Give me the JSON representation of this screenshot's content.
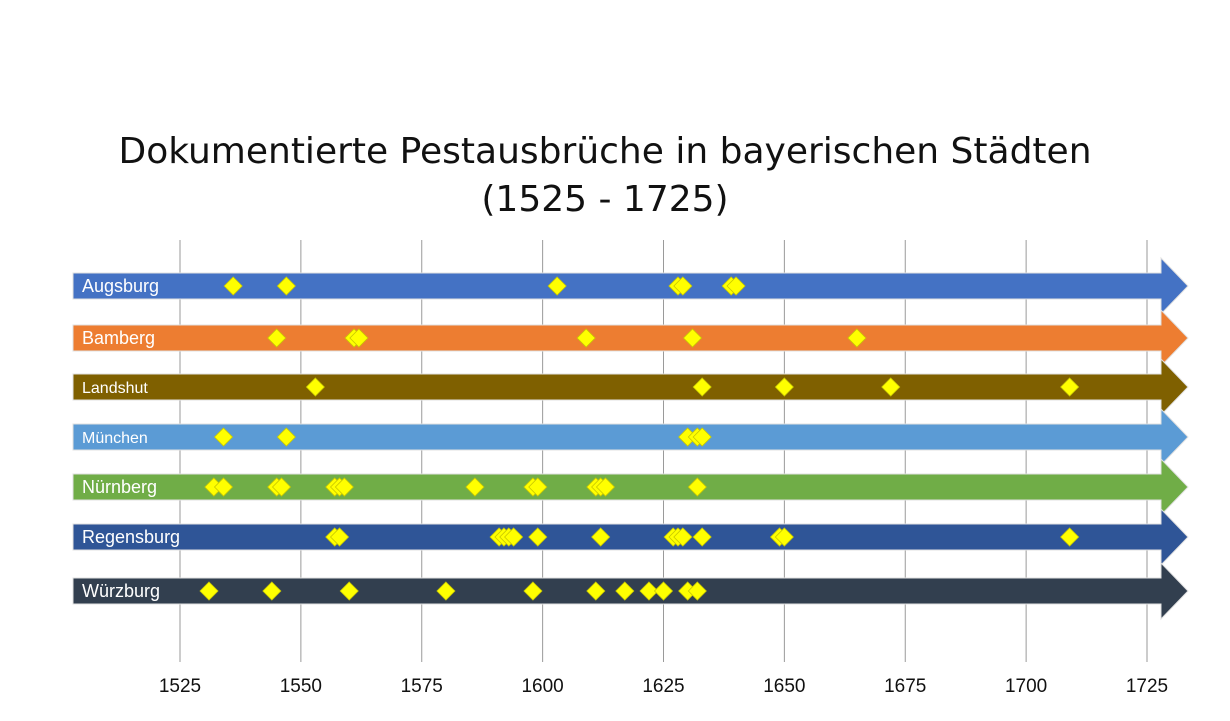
{
  "chart_data": {
    "type": "scatter",
    "title": "Dokumentierte Pestausbrüche in bayerischen Städten",
    "subtitle": "(1525 - 1725)",
    "x_ticks": [
      1525,
      1550,
      1575,
      1600,
      1625,
      1650,
      1675,
      1700,
      1725
    ],
    "xlim": [
      1525,
      1725
    ],
    "grid": true,
    "series": [
      {
        "name": "Augsburg",
        "color": "#4472C4",
        "values": [
          1536,
          1547,
          1603,
          1628,
          1629,
          1639,
          1640
        ]
      },
      {
        "name": "Bamberg",
        "color": "#ED7D31",
        "values": [
          1545,
          1561,
          1562,
          1609,
          1631,
          1665
        ]
      },
      {
        "name": "Landshut",
        "color": "#7F6000",
        "values": [
          1553,
          1633,
          1650,
          1672,
          1709
        ]
      },
      {
        "name": "München",
        "color": "#5B9BD5",
        "values": [
          1534,
          1547,
          1630,
          1632,
          1633
        ]
      },
      {
        "name": "Nürnberg",
        "color": "#70AD47",
        "values": [
          1532,
          1534,
          1545,
          1546,
          1557,
          1558,
          1559,
          1586,
          1598,
          1599,
          1611,
          1612,
          1613,
          1632
        ]
      },
      {
        "name": "Regensburg",
        "color": "#2F5597",
        "values": [
          1557,
          1558,
          1591,
          1592,
          1593,
          1594,
          1599,
          1612,
          1627,
          1628,
          1629,
          1633,
          1649,
          1650,
          1709
        ]
      },
      {
        "name": "Würzburg",
        "color": "#323F4F",
        "values": [
          1531,
          1544,
          1560,
          1580,
          1598,
          1611,
          1617,
          1622,
          1625,
          1630,
          1632
        ]
      }
    ],
    "marker": {
      "shape": "diamond",
      "color": "#FFFF00"
    }
  }
}
